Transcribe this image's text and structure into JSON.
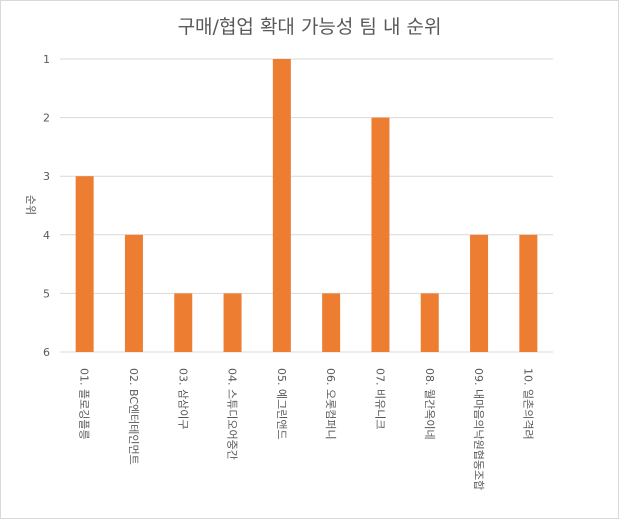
{
  "chart_data": {
    "type": "bar",
    "title": "구매/협업 확대 가능성 팀 내 순위",
    "xlabel": "",
    "ylabel": "순위",
    "ylim": [
      1,
      6
    ],
    "y_reversed": true,
    "yticks": [
      "1",
      "2",
      "3",
      "4",
      "5",
      "6"
    ],
    "grid": true,
    "legend": "none",
    "categories": [
      "01. 플로깅플릉",
      "02. BC엔터테인먼트",
      "03. 삼삼이구",
      "04. 스튜디오어중간",
      "05. 예그린앤드",
      "06. 오롯컴퍼니",
      "07. 비유니크",
      "08. 월간옥이네",
      "09. 내마음의낙원협동조합",
      "10. 일촌의격려"
    ],
    "values": [
      3,
      4,
      5,
      5,
      1,
      5,
      2,
      5,
      4,
      4
    ],
    "bar_color": "#ED7D31",
    "grid_color": "#d9d9d9"
  }
}
